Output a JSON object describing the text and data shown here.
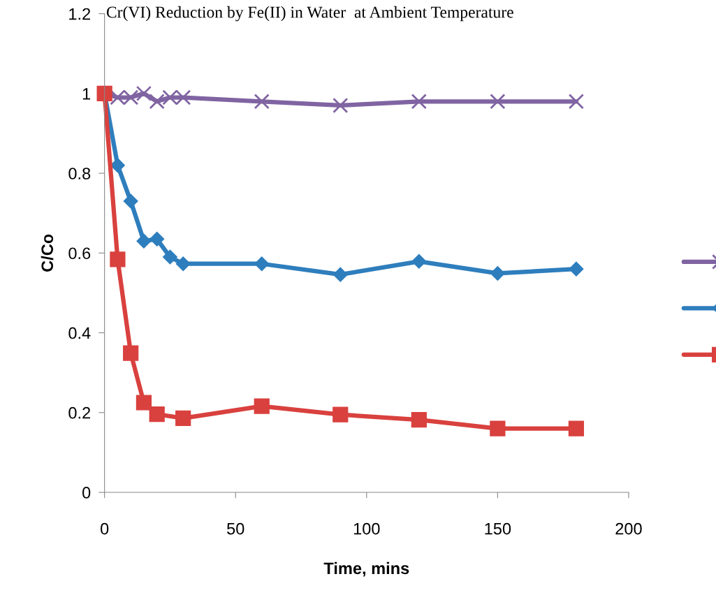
{
  "chart_data": {
    "type": "line",
    "title": "Cr(VI) Reduction by Fe(II) in Water  at Ambient Temperature",
    "xlabel": "Time, mins",
    "ylabel": "C/Co",
    "series": [
      {
        "color": "#8064a2",
        "marker": "cross",
        "x": [
          0,
          5,
          10,
          15,
          20,
          25,
          30,
          60,
          90,
          120,
          150,
          180
        ],
        "values": [
          1.0,
          0.99,
          0.99,
          1.0,
          0.98,
          0.99,
          0.99,
          0.98,
          0.97,
          0.98,
          0.98,
          0.98
        ]
      },
      {
        "color": "#2e7ebd",
        "marker": "diamond",
        "x": [
          0,
          5,
          10,
          15,
          20,
          25,
          30,
          60,
          90,
          120,
          150,
          180
        ],
        "values": [
          1.0,
          0.82,
          0.73,
          0.63,
          0.635,
          0.59,
          0.573,
          0.573,
          0.546,
          0.579,
          0.549,
          0.56
        ]
      },
      {
        "color": "#d9413e",
        "marker": "square",
        "x": [
          0,
          5,
          10,
          15,
          20,
          30,
          60,
          90,
          120,
          150,
          180
        ],
        "values": [
          1.0,
          0.584,
          0.349,
          0.225,
          0.196,
          0.186,
          0.216,
          0.195,
          0.182,
          0.16,
          0.16
        ]
      }
    ],
    "xlim": [
      0,
      200
    ],
    "xticks": [
      0,
      50,
      100,
      150,
      200
    ],
    "ylim": [
      0,
      1.2
    ],
    "yticks": [
      0,
      0.2,
      0.4,
      0.6,
      0.8,
      1,
      1.2
    ],
    "grid": false,
    "line_style": "solid"
  }
}
